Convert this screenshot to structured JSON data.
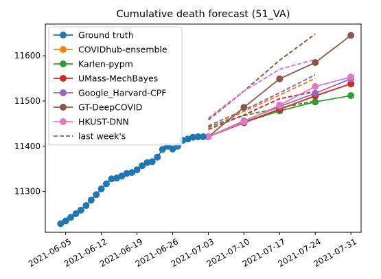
{
  "chart_data": {
    "type": "line",
    "title": "Cumulative death forecast (51_VA)",
    "xlabel": "",
    "ylabel": "",
    "xlim": [
      "2021-06-01",
      "2021-08-02"
    ],
    "ylim": [
      11210,
      11670
    ],
    "x_ticks": [
      "2021-06-05",
      "2021-06-12",
      "2021-06-19",
      "2021-06-26",
      "2021-07-03",
      "2021-07-10",
      "2021-07-17",
      "2021-07-24",
      "2021-07-31"
    ],
    "y_ticks": [
      11300,
      11400,
      11500,
      11600
    ],
    "legend_position": "upper-left",
    "ground_truth": {
      "name": "Ground truth",
      "color": "#1f77b4",
      "start_date": "2021-06-04",
      "values": [
        11229,
        11235,
        11243,
        11251,
        11259,
        11269,
        11281,
        11293,
        11306,
        11317,
        11328,
        11330,
        11334,
        11340,
        11342,
        11348,
        11357,
        11364,
        11366,
        11376,
        11393,
        11400,
        11394,
        11400,
        11413,
        11416,
        11420,
        11421,
        11421
      ]
    },
    "forecast_dates": [
      "2021-07-03",
      "2021-07-10",
      "2021-07-17",
      "2021-07-24",
      "2021-07-31"
    ],
    "series": [
      {
        "name": "COVIDhub-ensemble",
        "color": "#ff7f0e",
        "values": [
          11421,
          11453,
          11481,
          11512,
          11538
        ]
      },
      {
        "name": "Karlen-pypm",
        "color": "#2ca02c",
        "values": [
          11421,
          11453,
          11478,
          11498,
          11512
        ]
      },
      {
        "name": "UMass-MechBayes",
        "color": "#d62728",
        "values": [
          11421,
          11452,
          11482,
          11511,
          11538
        ]
      },
      {
        "name": "Google_Harvard-CPF",
        "color": "#9467bd",
        "values": [
          11421,
          11456,
          11488,
          11517,
          11549
        ]
      },
      {
        "name": "GT-DeepCOVID",
        "color": "#8c564b",
        "values": [
          11421,
          11486,
          11549,
          11585,
          11645
        ]
      },
      {
        "name": "HKUST-DNN",
        "color": "#e377c2",
        "values": [
          11421,
          11454,
          11491,
          11532,
          11553
        ]
      }
    ],
    "last_week": {
      "name": "last week's",
      "color": "#7f7f7f",
      "dates": [
        "2021-07-03",
        "2021-07-10",
        "2021-07-17",
        "2021-07-24"
      ],
      "series": [
        {
          "name": "COVIDhub-ensemble",
          "color": "#ff7f0e",
          "values": [
            11440,
            11477,
            11513,
            11550
          ]
        },
        {
          "name": "Karlen-pypm",
          "color": "#2ca02c",
          "values": [
            11443,
            11468,
            11485,
            11500
          ]
        },
        {
          "name": "UMass-MechBayes",
          "color": "#d62728",
          "values": [
            11437,
            11469,
            11505,
            11521
          ]
        },
        {
          "name": "Google_Harvard-CPF",
          "color": "#9467bd",
          "values": [
            11445,
            11480,
            11518,
            11558
          ]
        },
        {
          "name": "GT-DeepCOVID",
          "color": "#8c564b",
          "values": [
            11458,
            11522,
            11590,
            11648
          ]
        },
        {
          "name": "HKUST-DNN",
          "color": "#e377c2",
          "values": [
            11462,
            11522,
            11570,
            11592
          ]
        }
      ]
    },
    "legend_entries": [
      "Ground truth",
      "COVIDhub-ensemble",
      "Karlen-pypm",
      "UMass-MechBayes",
      "Google_Harvard-CPF",
      "GT-DeepCOVID",
      "HKUST-DNN",
      "last week's"
    ]
  }
}
